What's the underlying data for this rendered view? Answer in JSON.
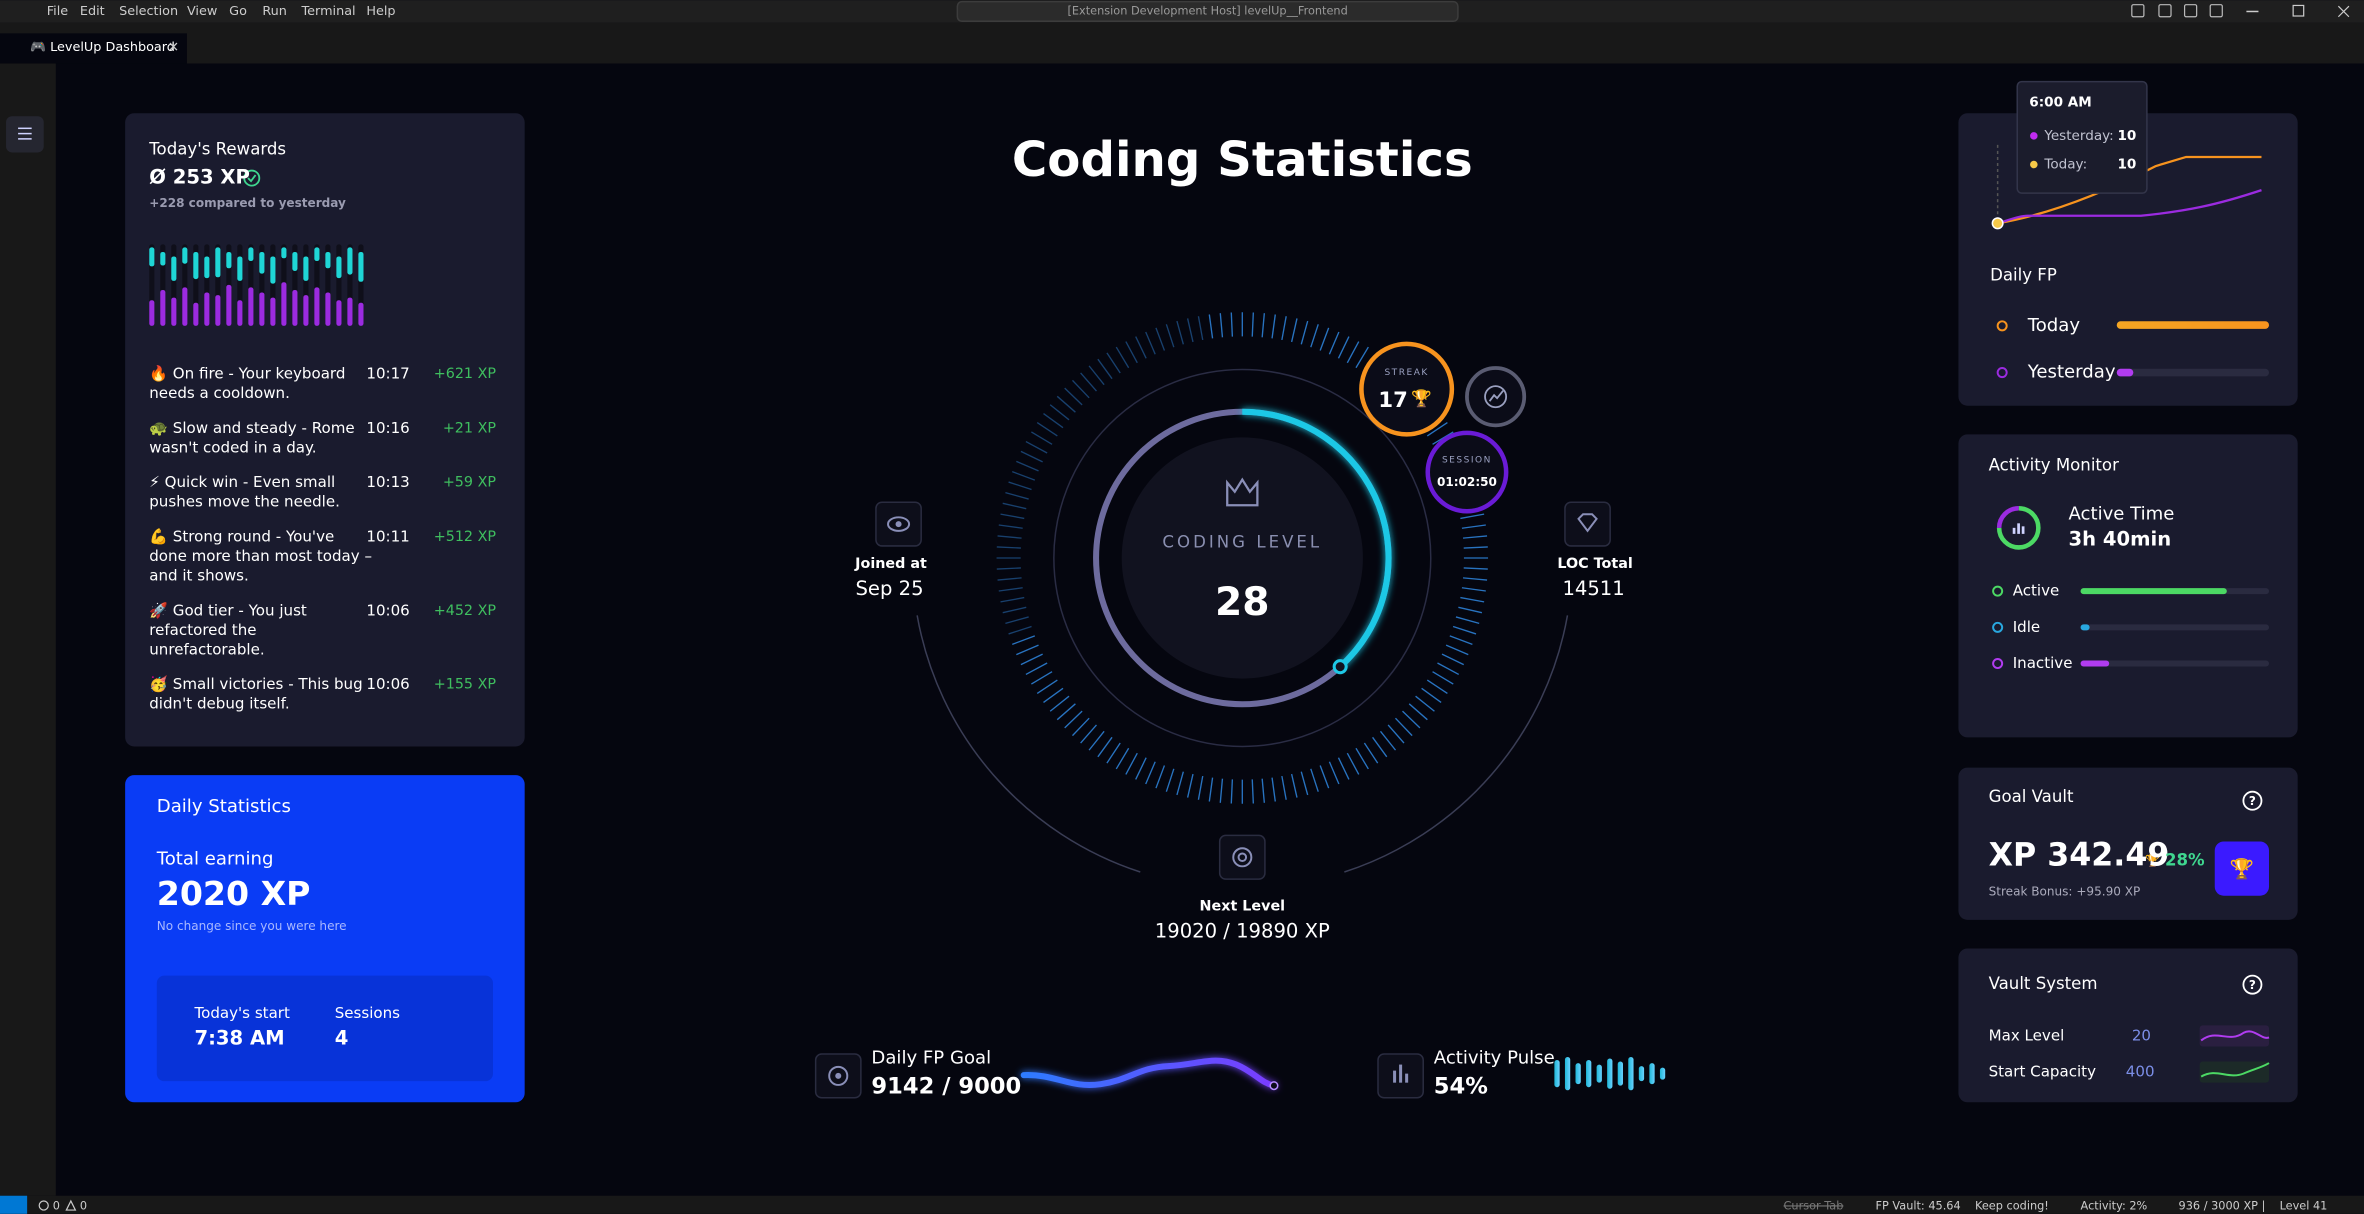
{
  "menu": [
    "File",
    "Edit",
    "Selection",
    "View",
    "Go",
    "Run",
    "Terminal",
    "Help"
  ],
  "title_bar": "[Extension Development Host] levelUp__Frontend",
  "tab": "🎮 LevelUp Dashboard",
  "rewards": {
    "title": "Today's Rewards",
    "total": "Ø 253 XP",
    "compare": "+228 compared to yesterday",
    "items": [
      {
        "lines": [
          "🔥 On fire - Your keyboard",
          "needs a cooldown."
        ],
        "time": "10:17",
        "xp": "+621 XP"
      },
      {
        "lines": [
          "🐢 Slow and steady - Rome",
          "wasn't coded in a day."
        ],
        "time": "10:16",
        "xp": "+21 XP"
      },
      {
        "lines": [
          "⚡ Quick win - Even small",
          "pushes move the needle."
        ],
        "time": "10:13",
        "xp": "+59 XP"
      },
      {
        "lines": [
          "💪 Strong round - You've",
          "done more than most today –",
          "and it shows."
        ],
        "time": "10:11",
        "xp": "+512 XP"
      },
      {
        "lines": [
          "🚀 God tier - You just",
          "refactored the",
          "unrefactorable."
        ],
        "time": "10:06",
        "xp": "+452 XP"
      },
      {
        "lines": [
          "🥳 Small victories - This bug",
          "didn't debug itself."
        ],
        "time": "10:06",
        "xp": "+155 XP"
      }
    ]
  },
  "daily_stats": {
    "title": "Daily Statistics",
    "label": "Total earning",
    "value": "2020 XP",
    "note": "No change since you were here",
    "start_label": "Today's start",
    "start": "7:38 AM",
    "sessions_label": "Sessions",
    "sessions": "4"
  },
  "center": {
    "title": "Coding Statistics",
    "level_label": "CODING LEVEL",
    "level": "28",
    "streak_label": "STREAK",
    "streak": "17",
    "session_label": "SESSION",
    "session": "01:02:50",
    "joined_label": "Joined at",
    "joined": "Sep 25",
    "loc_label": "LOC Total",
    "loc": "14511",
    "next_label": "Next Level",
    "next": "19020 / 19890 XP"
  },
  "bottom": {
    "fp_goal_label": "Daily FP Goal",
    "fp_goal": "9142 / 9000",
    "pulse_label": "Activity Pulse",
    "pulse": "54%"
  },
  "daily_fp": {
    "tooltip_time": "6:00 AM",
    "tooltip_yesterday_label": "Yesterday:",
    "tooltip_yesterday": "10",
    "tooltip_today_label": "Today:",
    "tooltip_today": "10",
    "title": "Daily FP",
    "today": "Today",
    "yesterday": "Yesterday"
  },
  "activity_monitor": {
    "title": "Activity Monitor",
    "active_time_label": "Active Time",
    "active_time": "3h 40min",
    "active": "Active",
    "idle": "Idle",
    "inactive": "Inactive"
  },
  "goal_vault": {
    "title": "Goal Vault",
    "value": "XP 342.49",
    "change": "28%",
    "bonus": "Streak Bonus: +95.90 XP"
  },
  "vault_system": {
    "title": "Vault System",
    "max_level_label": "Max Level",
    "max_level": "20",
    "start_capacity_label": "Start Capacity",
    "start_capacity": "400"
  },
  "status_bar": {
    "errors": "0",
    "warnings": "0",
    "cursor_tab": "Cursor Tab",
    "fp_vault": "FP Vault: 45.64",
    "keep_coding": "Keep coding!",
    "activity": "Activity: 2%",
    "xp": "936 / 3000 XP |",
    "level": "Level 41"
  }
}
